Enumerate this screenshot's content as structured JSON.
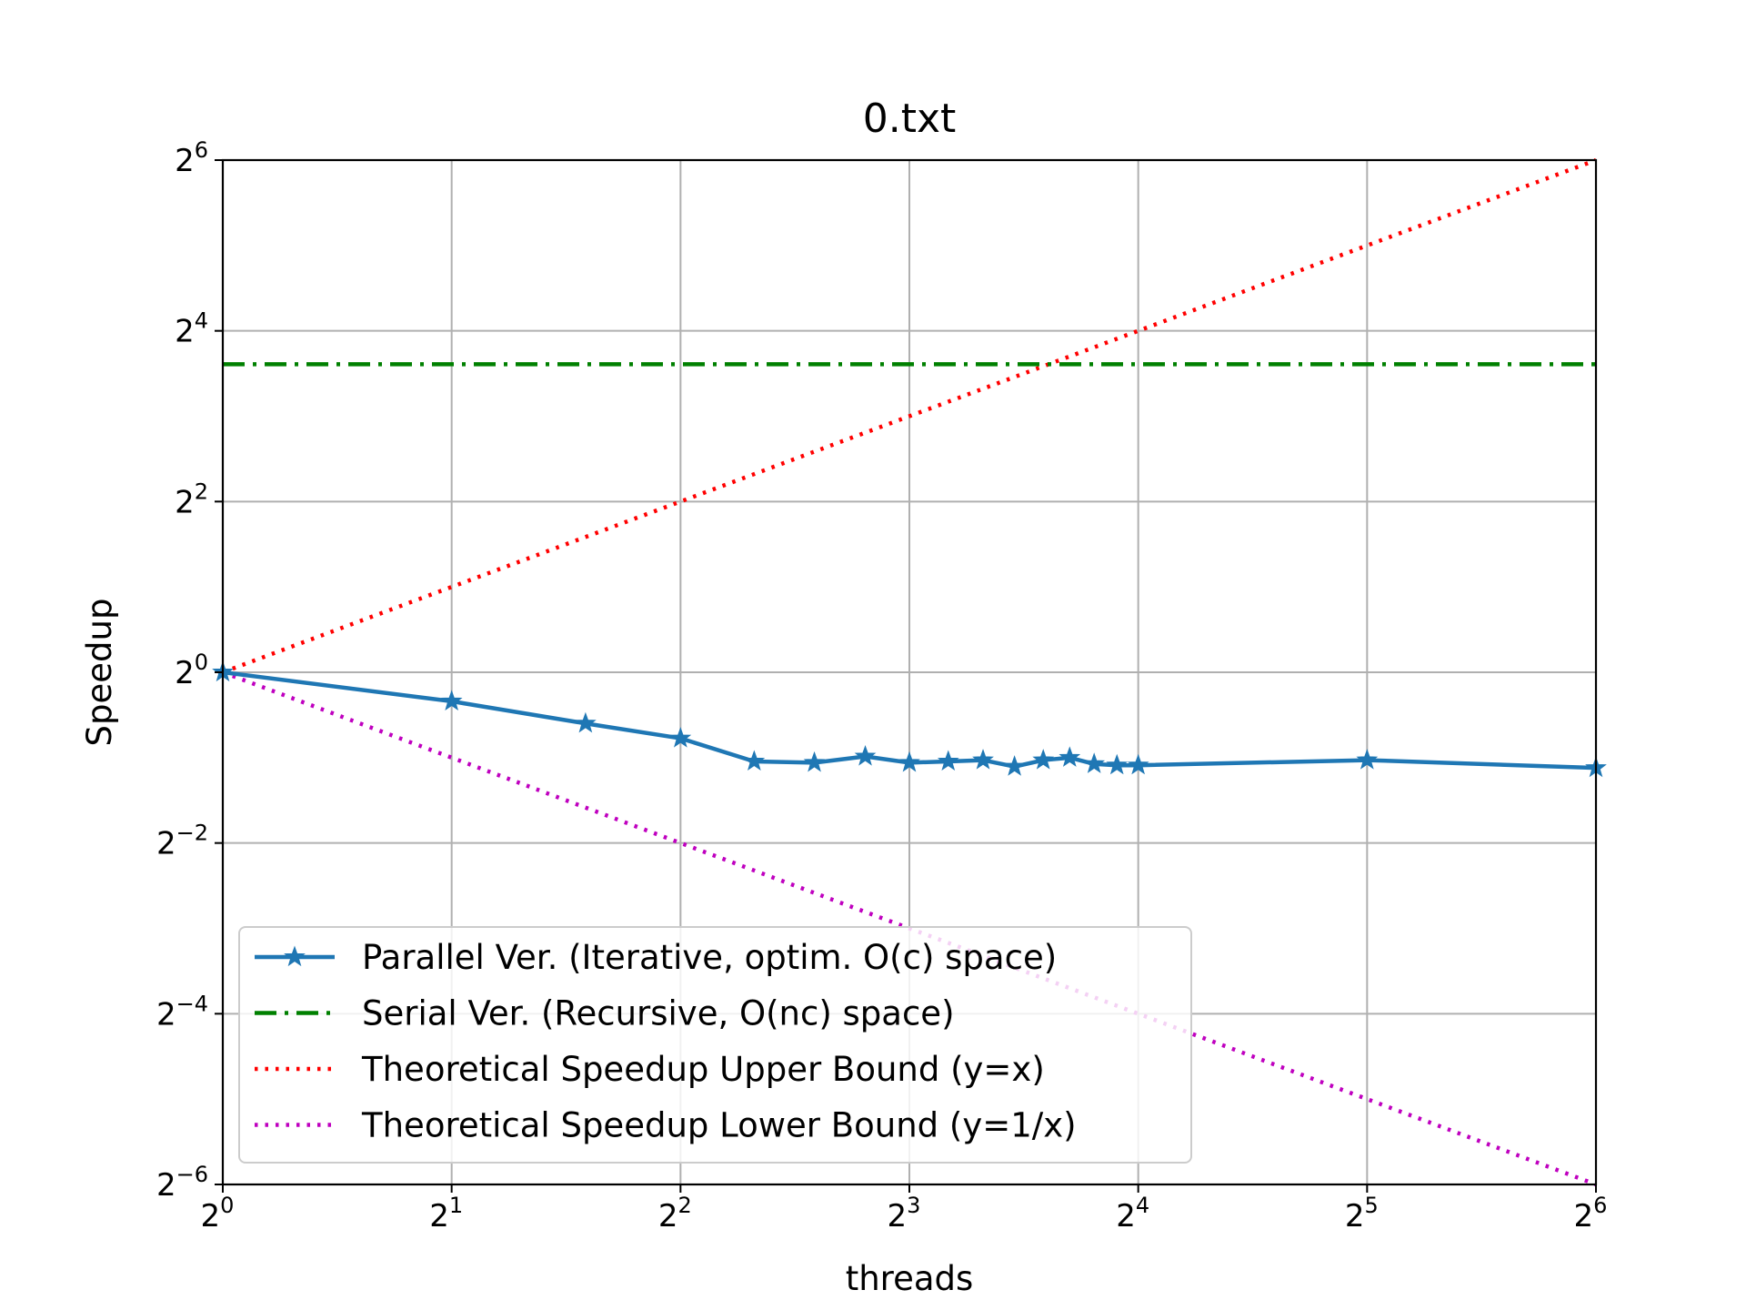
{
  "chart_data": {
    "type": "line",
    "title": "0.txt",
    "xlabel": "threads",
    "ylabel": "Speedup",
    "xscale": "log2",
    "yscale": "log2",
    "xlim": [
      1,
      64
    ],
    "ylim": [
      0.015625,
      64
    ],
    "xticks": [
      1,
      2,
      4,
      8,
      16,
      32,
      64
    ],
    "yticks": [
      0.015625,
      0.0625,
      0.25,
      1,
      4,
      16,
      64
    ],
    "xtick_exponents": [
      "0",
      "1",
      "2",
      "3",
      "4",
      "5",
      "6"
    ],
    "ytick_exponents": [
      "−6",
      "−4",
      "−2",
      "0",
      "2",
      "4",
      "6"
    ],
    "tick_base": "2",
    "grid": true,
    "legend_position": "lower-left",
    "series": [
      {
        "name": "Parallel Ver. (Iterative, optim. O(c) space)",
        "color": "#1f77b4",
        "style": "solid",
        "marker": "star",
        "x": [
          1,
          2,
          3,
          4,
          5,
          6,
          7,
          8,
          9,
          10,
          11,
          12,
          13,
          14,
          15,
          16,
          32,
          64
        ],
        "y": [
          1.0,
          0.79,
          0.66,
          0.585,
          0.485,
          0.48,
          0.505,
          0.48,
          0.485,
          0.49,
          0.465,
          0.49,
          0.5,
          0.475,
          0.47,
          0.47,
          0.49,
          0.46
        ]
      },
      {
        "name": "Serial Ver. (Recursive, O(nc) space)",
        "color": "#008000",
        "style": "dashdot",
        "x": [
          1,
          64
        ],
        "y": [
          12.2,
          12.2
        ]
      },
      {
        "name": "Theoretical Speedup Upper Bound (y=x)",
        "color": "#ff0000",
        "style": "dotted",
        "x": [
          1,
          64
        ],
        "y": [
          1,
          64
        ]
      },
      {
        "name": "Theoretical Speedup Lower Bound (y=1/x)",
        "color": "#bf00bf",
        "style": "dotted",
        "x": [
          1,
          64
        ],
        "y": [
          1,
          0.015625
        ]
      }
    ]
  }
}
